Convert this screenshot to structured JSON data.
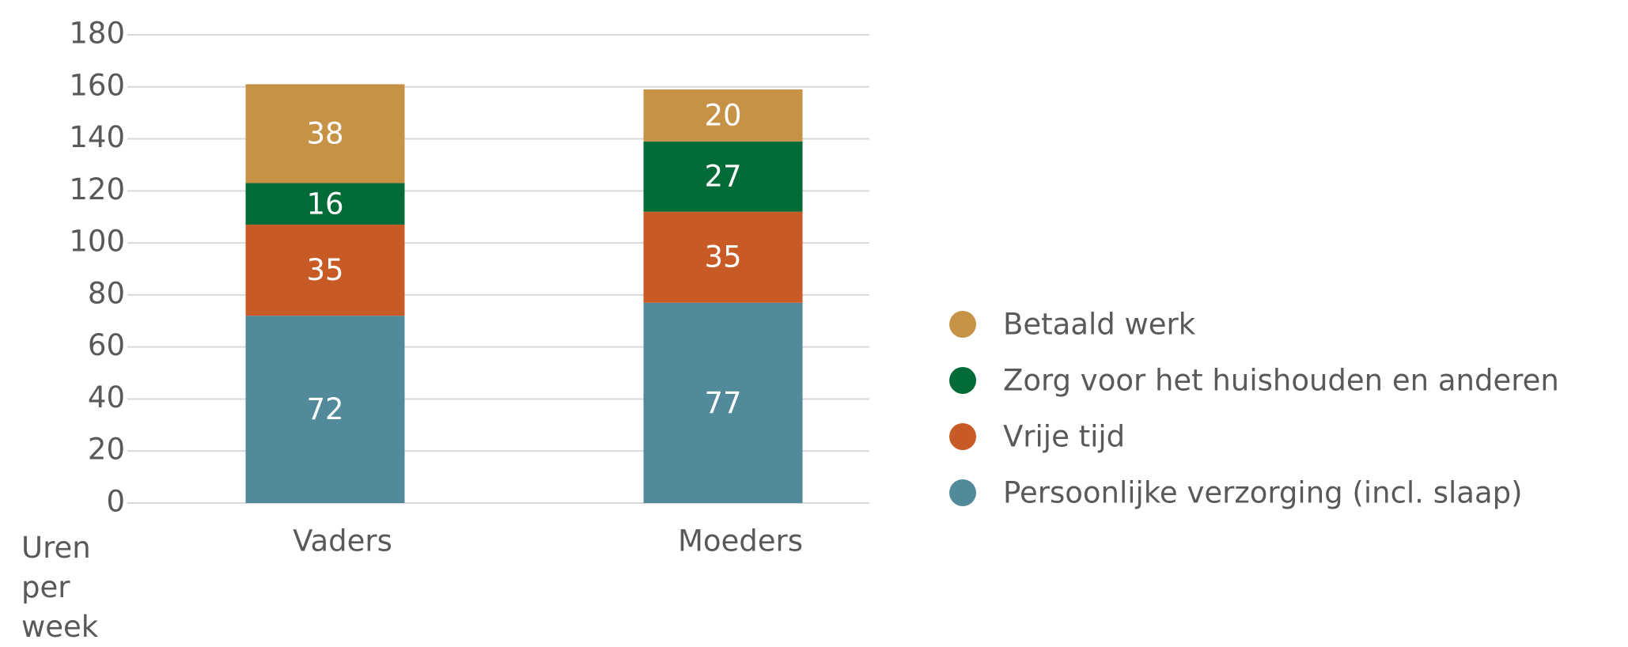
{
  "chart_data": {
    "type": "stacked_bar",
    "y_label": "Uren per week",
    "categories": [
      "Vaders",
      "Moeders"
    ],
    "series": [
      {
        "name": "Persoonlijke verzorging (incl. slaap)",
        "color": "#528a9b",
        "values": [
          72,
          77
        ]
      },
      {
        "name": "Vrije tijd",
        "color": "#c85a25",
        "values": [
          35,
          35
        ]
      },
      {
        "name": "Zorg voor het huishouden en anderen",
        "color": "#036b38",
        "values": [
          16,
          27
        ]
      },
      {
        "name": "Betaald werk",
        "color": "#c59246",
        "values": [
          38,
          20
        ]
      }
    ],
    "ylim": [
      0,
      180
    ],
    "yticks": [
      0,
      20,
      40,
      60,
      80,
      100,
      120,
      140,
      160,
      180
    ],
    "grid": true,
    "legend": "right"
  }
}
